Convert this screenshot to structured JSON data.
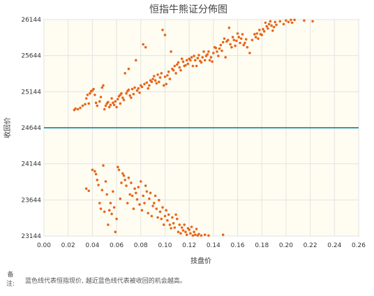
{
  "note": {
    "label": "备注:",
    "text": "蓝色线代表恒指现价, 越近蓝色线代表被收回的机会越高。"
  },
  "chart_data": {
    "type": "scatter",
    "title": "恒指牛熊证分佈图",
    "xlabel": "技盘价",
    "ylabel": "收回价",
    "xlim": [
      0.0,
      0.26
    ],
    "ylim": [
      23144,
      26144
    ],
    "xticks": [
      "0.00",
      "0.02",
      "0.04",
      "0.06",
      "0.08",
      "0.10",
      "0.12",
      "0.14",
      "0.16",
      "0.18",
      "0.20",
      "0.22",
      "0.24",
      "0.26"
    ],
    "yticks": [
      "23144",
      "23644",
      "24144",
      "24644",
      "25144",
      "25644",
      "26144"
    ],
    "current_price_line": {
      "y": 24644,
      "color": "#2a9db0"
    },
    "grid": true,
    "plot_background": "#fffdf2",
    "point_color": "#e8661a",
    "points": [
      [
        0.025,
        24890
      ],
      [
        0.026,
        24910
      ],
      [
        0.028,
        24900
      ],
      [
        0.03,
        24920
      ],
      [
        0.032,
        24950
      ],
      [
        0.034,
        24970
      ],
      [
        0.035,
        25050
      ],
      [
        0.036,
        25100
      ],
      [
        0.037,
        24980
      ],
      [
        0.038,
        25120
      ],
      [
        0.039,
        25150
      ],
      [
        0.04,
        25160
      ],
      [
        0.041,
        25180
      ],
      [
        0.042,
        25100
      ],
      [
        0.043,
        24990
      ],
      [
        0.044,
        24950
      ],
      [
        0.046,
        25010
      ],
      [
        0.047,
        25070
      ],
      [
        0.048,
        25200
      ],
      [
        0.049,
        25230
      ],
      [
        0.05,
        24900
      ],
      [
        0.051,
        24950
      ],
      [
        0.052,
        24980
      ],
      [
        0.053,
        25000
      ],
      [
        0.054,
        24930
      ],
      [
        0.055,
        24960
      ],
      [
        0.056,
        25050
      ],
      [
        0.057,
        24990
      ],
      [
        0.058,
        24960
      ],
      [
        0.059,
        25010
      ],
      [
        0.06,
        24930
      ],
      [
        0.061,
        25040
      ],
      [
        0.062,
        25080
      ],
      [
        0.063,
        25100
      ],
      [
        0.063,
        24980
      ],
      [
        0.064,
        25120
      ],
      [
        0.065,
        25060
      ],
      [
        0.066,
        25030
      ],
      [
        0.067,
        25400
      ],
      [
        0.068,
        25120
      ],
      [
        0.069,
        25150
      ],
      [
        0.07,
        25170
      ],
      [
        0.07,
        25460
      ],
      [
        0.071,
        25090
      ],
      [
        0.072,
        25060
      ],
      [
        0.073,
        25180
      ],
      [
        0.074,
        25110
      ],
      [
        0.075,
        25200
      ],
      [
        0.076,
        25580
      ],
      [
        0.077,
        25160
      ],
      [
        0.078,
        25190
      ],
      [
        0.079,
        25130
      ],
      [
        0.08,
        25230
      ],
      [
        0.081,
        25210
      ],
      [
        0.082,
        25800
      ],
      [
        0.083,
        25250
      ],
      [
        0.084,
        25760
      ],
      [
        0.085,
        25270
      ],
      [
        0.086,
        25190
      ],
      [
        0.087,
        25230
      ],
      [
        0.088,
        25300
      ],
      [
        0.089,
        25280
      ],
      [
        0.09,
        25320
      ],
      [
        0.091,
        25360
      ],
      [
        0.092,
        25300
      ],
      [
        0.093,
        25260
      ],
      [
        0.094,
        25380
      ],
      [
        0.095,
        25280
      ],
      [
        0.096,
        25340
      ],
      [
        0.097,
        25400
      ],
      [
        0.098,
        26000
      ],
      [
        0.099,
        25230
      ],
      [
        0.1,
        25350
      ],
      [
        0.1,
        25930
      ],
      [
        0.101,
        25250
      ],
      [
        0.102,
        25370
      ],
      [
        0.103,
        25420
      ],
      [
        0.104,
        25320
      ],
      [
        0.105,
        25700
      ],
      [
        0.106,
        25460
      ],
      [
        0.107,
        25440
      ],
      [
        0.108,
        25500
      ],
      [
        0.109,
        25400
      ],
      [
        0.11,
        25520
      ],
      [
        0.111,
        25550
      ],
      [
        0.112,
        25480
      ],
      [
        0.113,
        25440
      ],
      [
        0.114,
        25600
      ],
      [
        0.115,
        25560
      ],
      [
        0.116,
        25500
      ],
      [
        0.117,
        25510
      ],
      [
        0.118,
        25580
      ],
      [
        0.119,
        25530
      ],
      [
        0.12,
        25600
      ],
      [
        0.121,
        25580
      ],
      [
        0.122,
        25620
      ],
      [
        0.123,
        25500
      ],
      [
        0.124,
        25640
      ],
      [
        0.125,
        25580
      ],
      [
        0.126,
        25500
      ],
      [
        0.127,
        25610
      ],
      [
        0.128,
        25650
      ],
      [
        0.129,
        25570
      ],
      [
        0.13,
        25550
      ],
      [
        0.131,
        25620
      ],
      [
        0.132,
        25700
      ],
      [
        0.133,
        25580
      ],
      [
        0.134,
        25640
      ],
      [
        0.135,
        25660
      ],
      [
        0.136,
        25700
      ],
      [
        0.137,
        25580
      ],
      [
        0.138,
        25620
      ],
      [
        0.139,
        25560
      ],
      [
        0.14,
        25680
      ],
      [
        0.141,
        25760
      ],
      [
        0.142,
        25750
      ],
      [
        0.143,
        25700
      ],
      [
        0.144,
        25640
      ],
      [
        0.145,
        25740
      ],
      [
        0.146,
        25790
      ],
      [
        0.147,
        25710
      ],
      [
        0.148,
        25830
      ],
      [
        0.149,
        25880
      ],
      [
        0.15,
        25620
      ],
      [
        0.151,
        25840
      ],
      [
        0.152,
        25860
      ],
      [
        0.153,
        26030
      ],
      [
        0.154,
        25800
      ],
      [
        0.155,
        25760
      ],
      [
        0.156,
        25900
      ],
      [
        0.157,
        25860
      ],
      [
        0.158,
        25780
      ],
      [
        0.159,
        25850
      ],
      [
        0.16,
        25950
      ],
      [
        0.161,
        25900
      ],
      [
        0.162,
        25820
      ],
      [
        0.163,
        25880
      ],
      [
        0.164,
        25940
      ],
      [
        0.165,
        25790
      ],
      [
        0.166,
        25820
      ],
      [
        0.167,
        25870
      ],
      [
        0.168,
        25760
      ],
      [
        0.17,
        25680
      ],
      [
        0.172,
        25860
      ],
      [
        0.174,
        25940
      ],
      [
        0.175,
        25900
      ],
      [
        0.176,
        25950
      ],
      [
        0.177,
        25880
      ],
      [
        0.178,
        26000
      ],
      [
        0.179,
        25940
      ],
      [
        0.18,
        25930
      ],
      [
        0.181,
        26010
      ],
      [
        0.182,
        25980
      ],
      [
        0.183,
        26100
      ],
      [
        0.184,
        26050
      ],
      [
        0.185,
        26020
      ],
      [
        0.186,
        26080
      ],
      [
        0.187,
        26120
      ],
      [
        0.188,
        26060
      ],
      [
        0.189,
        25990
      ],
      [
        0.19,
        26040
      ],
      [
        0.191,
        26110
      ],
      [
        0.192,
        26070
      ],
      [
        0.195,
        26120
      ],
      [
        0.198,
        26080
      ],
      [
        0.2,
        26130
      ],
      [
        0.202,
        26110
      ],
      [
        0.204,
        26140
      ],
      [
        0.205,
        26100
      ],
      [
        0.207,
        26140
      ],
      [
        0.215,
        26130
      ],
      [
        0.222,
        26120
      ],
      [
        0.035,
        23800
      ],
      [
        0.037,
        23770
      ],
      [
        0.04,
        24060
      ],
      [
        0.042,
        24040
      ],
      [
        0.043,
        24000
      ],
      [
        0.044,
        23920
      ],
      [
        0.045,
        23850
      ],
      [
        0.046,
        23600
      ],
      [
        0.047,
        23520
      ],
      [
        0.048,
        23780
      ],
      [
        0.049,
        24120
      ],
      [
        0.05,
        23480
      ],
      [
        0.051,
        23900
      ],
      [
        0.052,
        23720
      ],
      [
        0.053,
        23300
      ],
      [
        0.054,
        23500
      ],
      [
        0.055,
        23600
      ],
      [
        0.056,
        23450
      ],
      [
        0.057,
        23760
      ],
      [
        0.058,
        23540
      ],
      [
        0.059,
        23200
      ],
      [
        0.06,
        23380
      ],
      [
        0.061,
        24100
      ],
      [
        0.062,
        24060
      ],
      [
        0.063,
        23660
      ],
      [
        0.064,
        23880
      ],
      [
        0.065,
        24010
      ],
      [
        0.066,
        23980
      ],
      [
        0.067,
        23920
      ],
      [
        0.068,
        23840
      ],
      [
        0.069,
        23600
      ],
      [
        0.07,
        23950
      ],
      [
        0.071,
        23720
      ],
      [
        0.072,
        23880
      ],
      [
        0.073,
        23700
      ],
      [
        0.074,
        23520
      ],
      [
        0.075,
        23800
      ],
      [
        0.076,
        23740
      ],
      [
        0.077,
        23650
      ],
      [
        0.078,
        23820
      ],
      [
        0.079,
        23580
      ],
      [
        0.08,
        23900
      ],
      [
        0.081,
        23500
      ],
      [
        0.082,
        23700
      ],
      [
        0.083,
        23600
      ],
      [
        0.084,
        23840
      ],
      [
        0.085,
        23760
      ],
      [
        0.086,
        23460
      ],
      [
        0.087,
        23660
      ],
      [
        0.088,
        23740
      ],
      [
        0.089,
        23420
      ],
      [
        0.09,
        23560
      ],
      [
        0.091,
        23600
      ],
      [
        0.092,
        23700
      ],
      [
        0.093,
        23520
      ],
      [
        0.094,
        23400
      ],
      [
        0.095,
        23640
      ],
      [
        0.096,
        23480
      ],
      [
        0.097,
        23380
      ],
      [
        0.098,
        23540
      ],
      [
        0.099,
        23300
      ],
      [
        0.1,
        23420
      ],
      [
        0.101,
        23500
      ],
      [
        0.102,
        23360
      ],
      [
        0.103,
        23440
      ],
      [
        0.104,
        23300
      ],
      [
        0.105,
        23250
      ],
      [
        0.106,
        23400
      ],
      [
        0.107,
        23320
      ],
      [
        0.108,
        23260
      ],
      [
        0.109,
        23440
      ],
      [
        0.11,
        23380
      ],
      [
        0.111,
        23200
      ],
      [
        0.112,
        23300
      ],
      [
        0.113,
        23180
      ],
      [
        0.114,
        23260
      ],
      [
        0.115,
        23220
      ],
      [
        0.116,
        23300
      ],
      [
        0.117,
        23200
      ],
      [
        0.118,
        23160
      ],
      [
        0.119,
        23250
      ],
      [
        0.12,
        23230
      ],
      [
        0.121,
        23180
      ],
      [
        0.122,
        23270
      ],
      [
        0.123,
        23150
      ],
      [
        0.124,
        23200
      ],
      [
        0.125,
        23160
      ],
      [
        0.126,
        23240
      ],
      [
        0.127,
        23150
      ],
      [
        0.128,
        23170
      ],
      [
        0.13,
        23150
      ],
      [
        0.133,
        23160
      ],
      [
        0.136,
        23150
      ],
      [
        0.148,
        23160
      ]
    ]
  }
}
